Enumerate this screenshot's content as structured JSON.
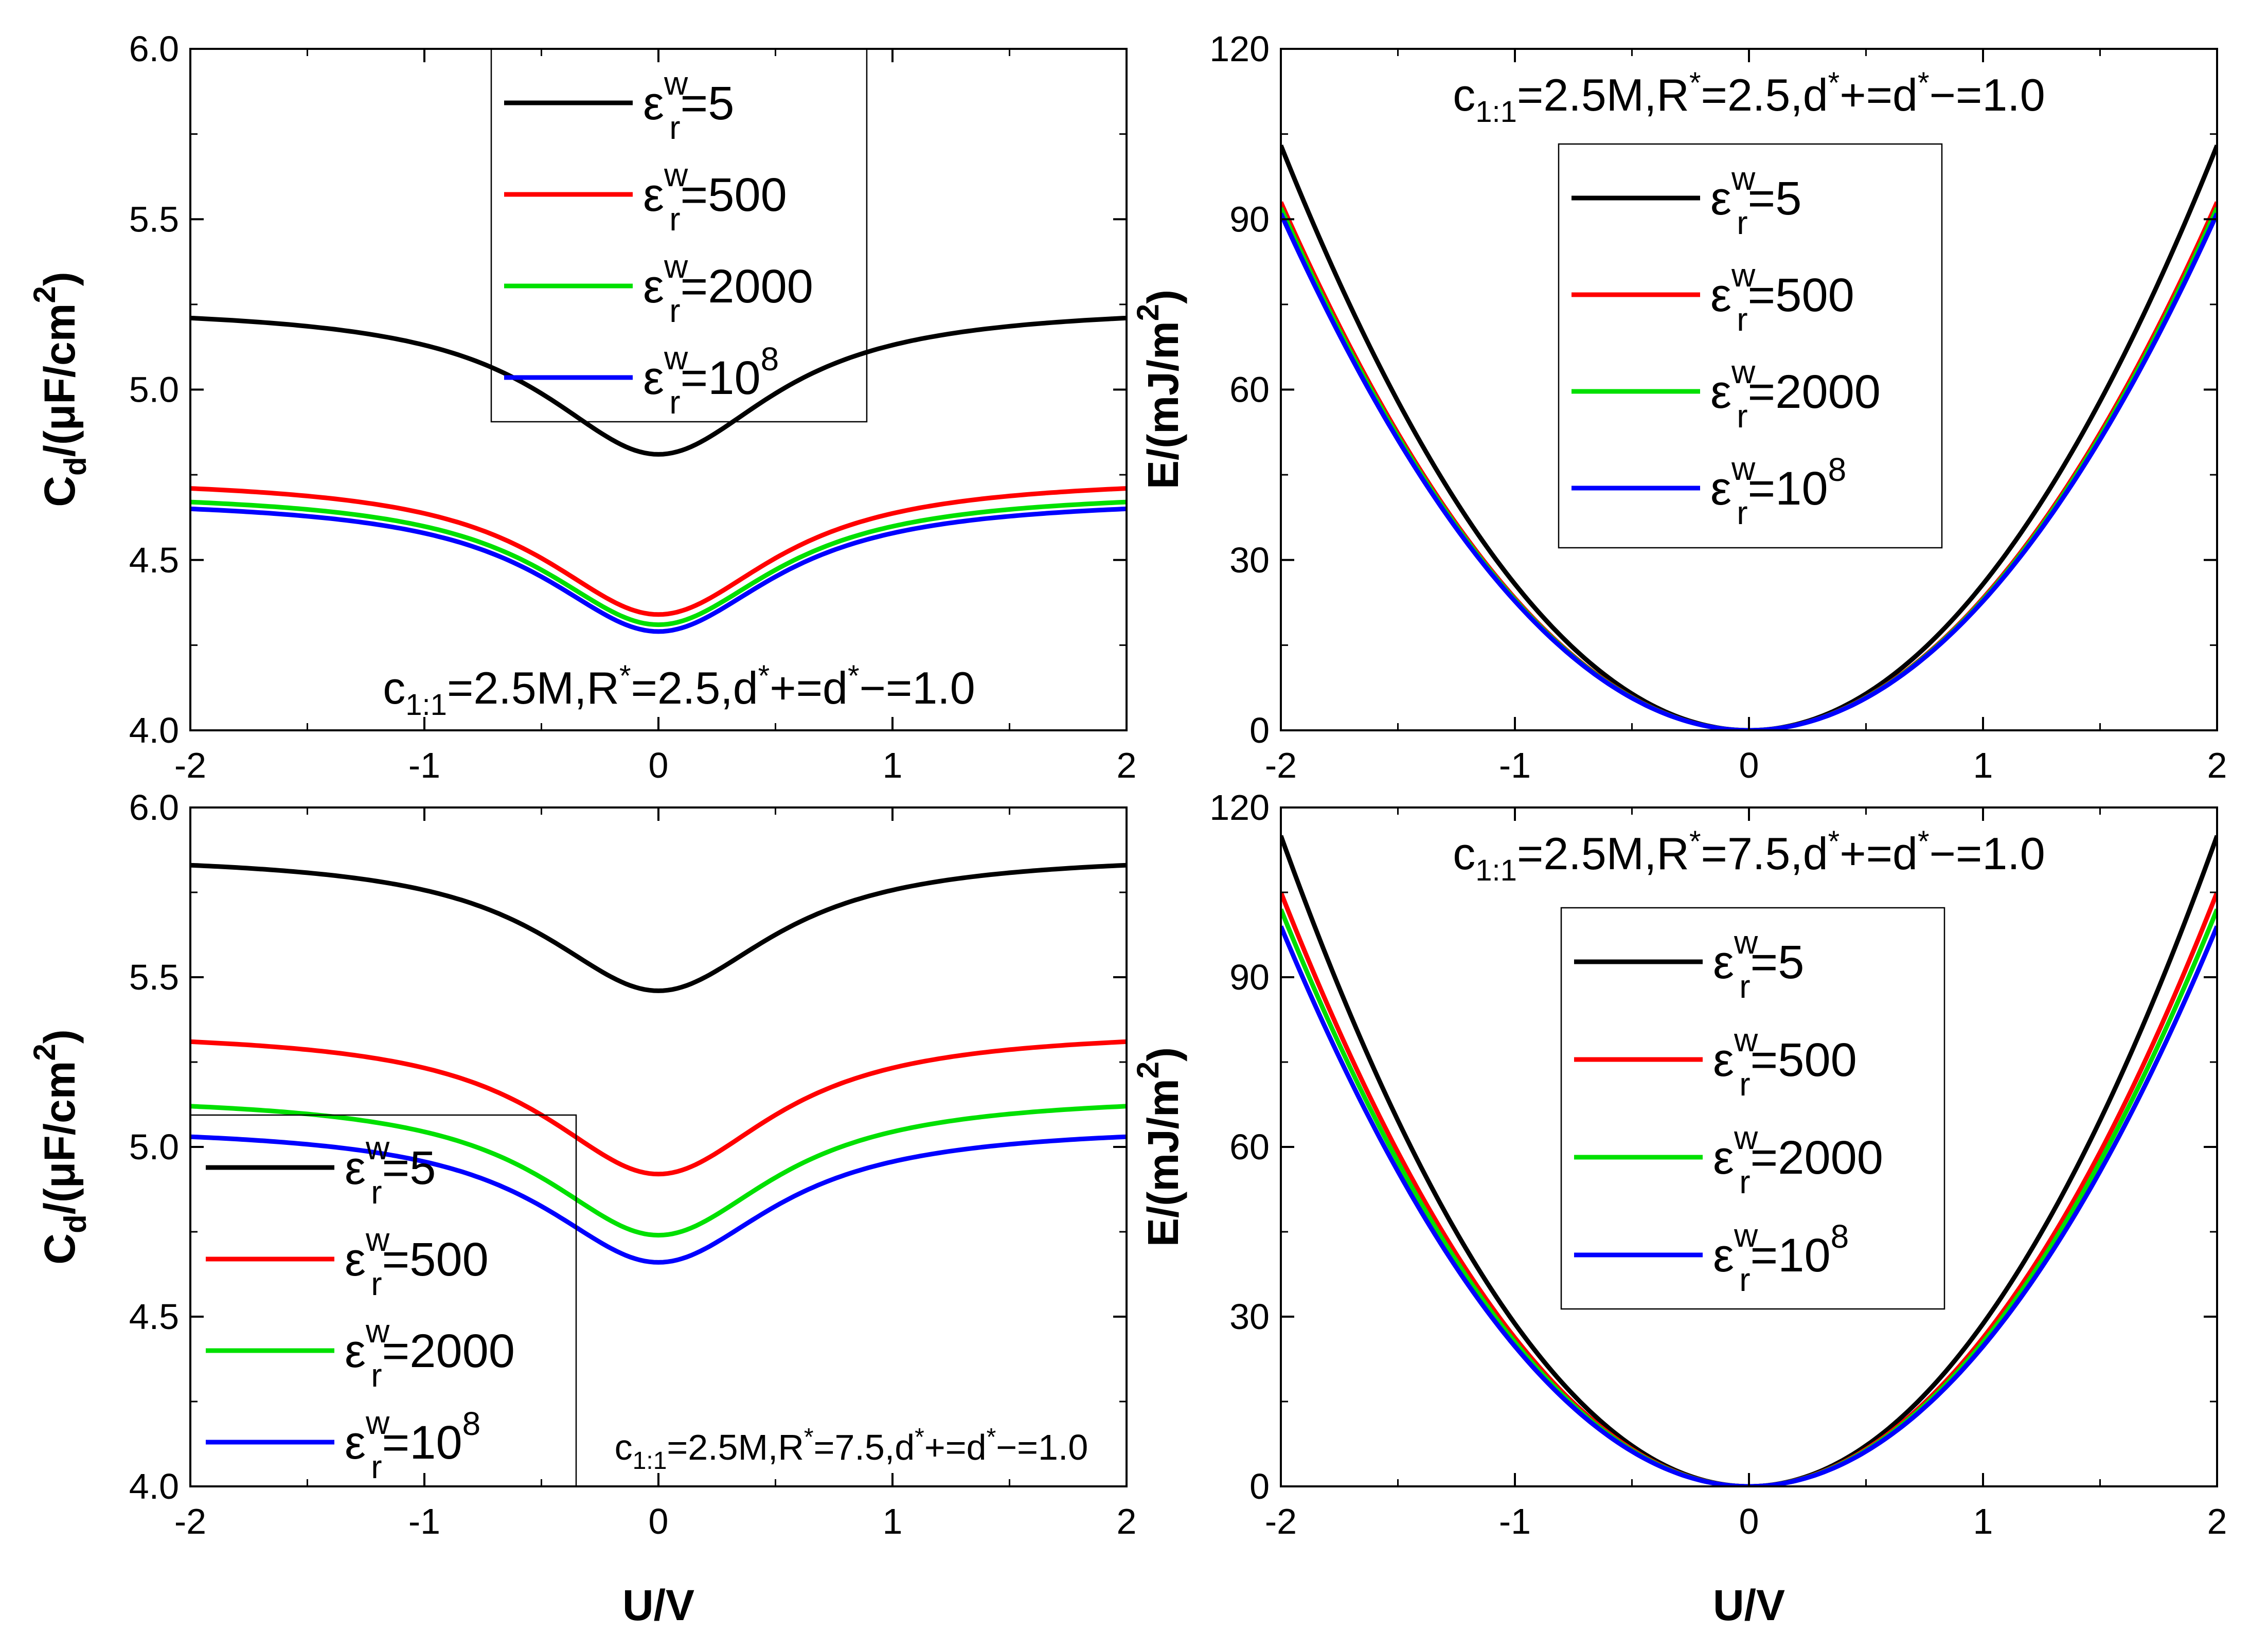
{
  "colors": {
    "black": "#000000",
    "red": "#ff0000",
    "green": "#00e000",
    "blue": "#0000ff"
  },
  "chart_data": [
    {
      "id": "tl",
      "type": "line",
      "xlabel_main": "C",
      "ylabel_sub": "d",
      "ylabel_rest": "/(μF/cm",
      "ylabel_sup": "2",
      "ylabel_close": ")",
      "xlim": [
        -2,
        2
      ],
      "ylim": [
        4.0,
        6.0
      ],
      "xticks": [
        "-2",
        "-1",
        "0",
        "1",
        "2"
      ],
      "yticks": [
        "4.0",
        "4.5",
        "5.0",
        "5.5",
        "6.0"
      ],
      "shape": "dip",
      "annotation": {
        "c": "c",
        "c_sub": "1:1",
        "mid": "=2.5M,R",
        "star1": "*",
        "r": "=2.5,d",
        "star2": "*",
        "plus": "+=d",
        "star3": "*",
        "end": "−=1.0"
      },
      "series": [
        {
          "name": "εwr=5",
          "eps": "ε",
          "sup": "w",
          "sub": "r",
          "val": "=5",
          "color": "black",
          "min": 4.81,
          "max": 5.21
        },
        {
          "name": "εwr=500",
          "eps": "ε",
          "sup": "w",
          "sub": "r",
          "val": "=500",
          "color": "red",
          "min": 4.34,
          "max": 4.71
        },
        {
          "name": "εwr=2000",
          "eps": "ε",
          "sup": "w",
          "sub": "r",
          "val": "=2000",
          "color": "green",
          "min": 4.31,
          "max": 4.67
        },
        {
          "name": "εwr=10^8",
          "eps": "ε",
          "sup": "w",
          "sub": "r",
          "val": "=10",
          "valsup": "8",
          "color": "blue",
          "min": 4.29,
          "max": 4.65
        }
      ]
    },
    {
      "id": "tr",
      "type": "line",
      "xlabel_main": "E/(mJ/m",
      "ylabel_sup": "2",
      "ylabel_close": ")",
      "xlim": [
        -2,
        2
      ],
      "ylim": [
        0,
        120
      ],
      "xticks": [
        "-2",
        "-1",
        "0",
        "1",
        "2"
      ],
      "yticks": [
        "0",
        "30",
        "60",
        "90",
        "120"
      ],
      "shape": "parabola",
      "annotation": {
        "c": "c",
        "c_sub": "1:1",
        "mid": "=2.5M,R",
        "star1": "*",
        "r": "=2.5,d",
        "star2": "*",
        "plus": "+=d",
        "star3": "*",
        "end": "−=1.0"
      },
      "series": [
        {
          "name": "εwr=5",
          "eps": "ε",
          "sup": "w",
          "sub": "r",
          "val": "=5",
          "color": "black",
          "min": 0,
          "max": 103
        },
        {
          "name": "εwr=500",
          "eps": "ε",
          "sup": "w",
          "sub": "r",
          "val": "=500",
          "color": "red",
          "min": 0,
          "max": 93
        },
        {
          "name": "εwr=2000",
          "eps": "ε",
          "sup": "w",
          "sub": "r",
          "val": "=2000",
          "color": "green",
          "min": 0,
          "max": 92
        },
        {
          "name": "εwr=10^8",
          "eps": "ε",
          "sup": "w",
          "sub": "r",
          "val": "=10",
          "valsup": "8",
          "color": "blue",
          "min": 0,
          "max": 91
        }
      ]
    },
    {
      "id": "bl",
      "type": "line",
      "xlabel": "U/V",
      "xlabel_main": "C",
      "ylabel_sub": "d",
      "ylabel_rest": "/(μF/cm",
      "ylabel_sup": "2",
      "ylabel_close": ")",
      "xlim": [
        -2,
        2
      ],
      "ylim": [
        4.0,
        6.0
      ],
      "xticks": [
        "-2",
        "-1",
        "0",
        "1",
        "2"
      ],
      "yticks": [
        "4.0",
        "4.5",
        "5.0",
        "5.5",
        "6.0"
      ],
      "shape": "dip",
      "annotation": {
        "c": "c",
        "c_sub": "1:1",
        "mid": "=2.5M,R",
        "star1": "*",
        "r": "=7.5,d",
        "star2": "*",
        "plus": "+=d",
        "star3": "*",
        "end": "−=1.0"
      },
      "series": [
        {
          "name": "εwr=5",
          "eps": "ε",
          "sup": "w",
          "sub": "r",
          "val": "=5",
          "color": "black",
          "min": 5.46,
          "max": 5.83
        },
        {
          "name": "εwr=500",
          "eps": "ε",
          "sup": "w",
          "sub": "r",
          "val": "=500",
          "color": "red",
          "min": 4.92,
          "max": 5.31
        },
        {
          "name": "εwr=2000",
          "eps": "ε",
          "sup": "w",
          "sub": "r",
          "val": "=2000",
          "color": "green",
          "min": 4.74,
          "max": 5.12
        },
        {
          "name": "εwr=10^8",
          "eps": "ε",
          "sup": "w",
          "sub": "r",
          "val": "=10",
          "valsup": "8",
          "color": "blue",
          "min": 4.66,
          "max": 5.03
        }
      ]
    },
    {
      "id": "br",
      "type": "line",
      "xlabel": "U/V",
      "xlabel_main": "E/(mJ/m",
      "ylabel_sup": "2",
      "ylabel_close": ")",
      "xlim": [
        -2,
        2
      ],
      "ylim": [
        0,
        120
      ],
      "xticks": [
        "-2",
        "-1",
        "0",
        "1",
        "2"
      ],
      "yticks": [
        "0",
        "30",
        "60",
        "90",
        "120"
      ],
      "shape": "parabola",
      "annotation": {
        "c": "c",
        "c_sub": "1:1",
        "mid": "=2.5M,R",
        "star1": "*",
        "r": "=7.5,d",
        "star2": "*",
        "plus": "+=d",
        "star3": "*",
        "end": "−=1.0"
      },
      "series": [
        {
          "name": "εwr=5",
          "eps": "ε",
          "sup": "w",
          "sub": "r",
          "val": "=5",
          "color": "black",
          "min": 0,
          "max": 115
        },
        {
          "name": "εwr=500",
          "eps": "ε",
          "sup": "w",
          "sub": "r",
          "val": "=500",
          "color": "red",
          "min": 0,
          "max": 105
        },
        {
          "name": "εwr=2000",
          "eps": "ε",
          "sup": "w",
          "sub": "r",
          "val": "=2000",
          "color": "green",
          "min": 0,
          "max": 102
        },
        {
          "name": "εwr=10^8",
          "eps": "ε",
          "sup": "w",
          "sub": "r",
          "val": "=10",
          "valsup": "8",
          "color": "blue",
          "min": 0,
          "max": 99
        }
      ]
    }
  ]
}
